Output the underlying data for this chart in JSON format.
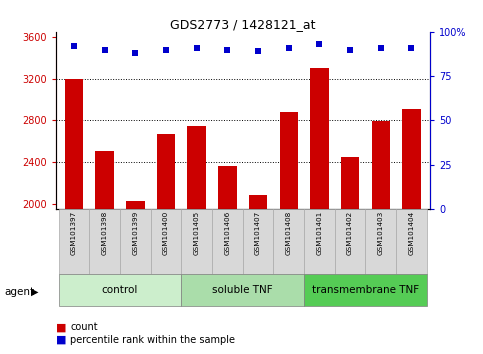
{
  "title": "GDS2773 / 1428121_at",
  "samples": [
    "GSM101397",
    "GSM101398",
    "GSM101399",
    "GSM101400",
    "GSM101405",
    "GSM101406",
    "GSM101407",
    "GSM101408",
    "GSM101401",
    "GSM101402",
    "GSM101403",
    "GSM101404"
  ],
  "counts": [
    3200,
    2510,
    2030,
    2670,
    2750,
    2360,
    2080,
    2880,
    3300,
    2450,
    2790,
    2910
  ],
  "percentile_ranks": [
    92,
    90,
    88,
    90,
    91,
    90,
    89,
    91,
    93,
    90,
    91,
    91
  ],
  "ylim_left": [
    1950,
    3650
  ],
  "ylim_right": [
    0,
    100
  ],
  "yticks_left": [
    2000,
    2400,
    2800,
    3200,
    3600
  ],
  "yticks_right": [
    0,
    25,
    50,
    75,
    100
  ],
  "ytick_right_labels": [
    "0",
    "25",
    "50",
    "75",
    "100%"
  ],
  "groups": [
    {
      "label": "control",
      "start": 0,
      "end": 4,
      "color": "#cceecc"
    },
    {
      "label": "soluble TNF",
      "start": 4,
      "end": 8,
      "color": "#aaddaa"
    },
    {
      "label": "transmembrane TNF",
      "start": 8,
      "end": 12,
      "color": "#55cc55"
    }
  ],
  "bar_color": "#cc0000",
  "dot_color": "#0000cc",
  "grid_color": "#000000",
  "left_tick_color": "#cc0000",
  "right_tick_color": "#0000cc",
  "agent_label": "agent",
  "legend_count_label": "count",
  "legend_percentile_label": "percentile rank within the sample",
  "sample_label_bg": "#d8d8d8",
  "sample_label_border": "#aaaaaa"
}
